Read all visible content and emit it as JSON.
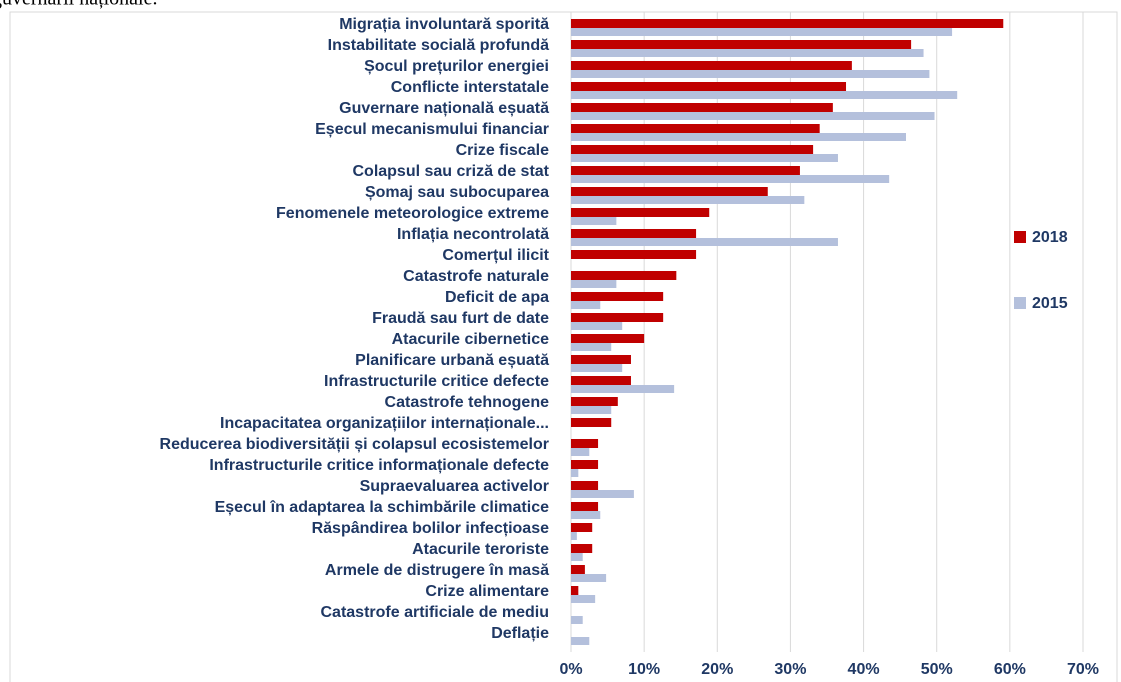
{
  "header_text": "guvernării naționale.",
  "chart_data": {
    "type": "hbar",
    "categories": [
      "Migrația involuntară sporită",
      "Instabilitate socială profundă",
      "Șocul prețurilor energiei",
      "Conflicte interstatale",
      "Guvernare națională eșuată",
      "Eșecul mecanismului financiar",
      "Crize fiscale",
      "Colapsul sau criză de stat",
      "Șomaj sau subocuparea",
      "Fenomenele meteorologice extreme",
      "Inflația necontrolată",
      "Comerțul ilicit",
      "Catastrofe naturale",
      "Deficit de apa",
      "Fraudă sau furt de date",
      "Atacurile cibernetice",
      "Planificare urbană eșuată",
      "Infrastructurile critice defecte",
      "Catastrofe tehnogene",
      "Incapacitatea organizațiilor internaționale...",
      "Reducerea biodiversității și colapsul ecosistemelor",
      "Infrastructurile critice informaționale defecte",
      "Supraevaluarea activelor",
      "Eșecul în adaptarea la schimbările climatice",
      "Răspândirea bolilor infecțioase",
      "Atacurile teroriste",
      "Armele de distrugere în masă",
      "Crize alimentare",
      "Catastrofe artificiale de mediu",
      "Deflație"
    ],
    "series": [
      {
        "name": "2018",
        "color": "#c00000",
        "values": [
          59.1,
          46.5,
          38.4,
          37.6,
          35.8,
          34,
          33.1,
          31.3,
          26.9,
          18.9,
          17.1,
          17.1,
          14.4,
          12.6,
          12.6,
          10,
          8.2,
          8.2,
          6.4,
          5.5,
          3.7,
          3.7,
          3.7,
          3.7,
          2.9,
          2.9,
          1.9,
          1,
          null,
          null
        ]
      },
      {
        "name": "2015",
        "color": "#b4c0dc",
        "values": [
          52.1,
          48.2,
          49,
          52.8,
          49.7,
          45.8,
          36.5,
          43.5,
          31.9,
          6.2,
          36.5,
          null,
          6.2,
          4,
          7,
          5.5,
          7,
          14.1,
          5.5,
          null,
          2.5,
          1,
          8.6,
          4,
          0.8,
          1.6,
          4.8,
          3.3,
          1.6,
          2.5
        ]
      }
    ],
    "xlim": [
      0,
      70
    ],
    "xticks": [
      {
        "value": 0,
        "label": "0%"
      },
      {
        "value": 10,
        "label": "10%"
      },
      {
        "value": 20,
        "label": "20%"
      },
      {
        "value": 30,
        "label": "30%"
      },
      {
        "value": 40,
        "label": "40%"
      },
      {
        "value": 50,
        "label": "50%"
      },
      {
        "value": 60,
        "label": "60%"
      },
      {
        "value": 70,
        "label": "70%"
      }
    ],
    "grid": true,
    "legend": "right"
  }
}
